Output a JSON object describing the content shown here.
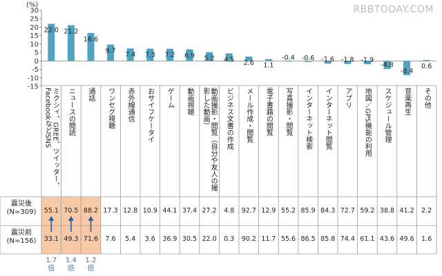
{
  "watermark": "RBBTODAY.COM",
  "chart_data": {
    "type": "bar",
    "ylabel": "(%)",
    "ylim": [
      -15,
      30
    ],
    "yticks": [
      30,
      25,
      20,
      15,
      10,
      5,
      0,
      -5,
      -10,
      -15
    ],
    "bar_color": "#4fa3c0",
    "categories": [
      "ミクシィ、GREE、ツイッター、FacebookなどSNS",
      "ニュースの閲読",
      "通話",
      "ワンセグ視聴",
      "赤外線通信",
      "おサイフケータイ",
      "ゲーム",
      "動画視聴",
      "動画撮影・閲覧（自分や友人の撮影した動画）",
      "ビジネス文書の作成",
      "メール作成・閲覧",
      "電子書籍の閲覧",
      "写真撮影・閲覧",
      "インターネット検索",
      "インターネット閲覧",
      "アプリ",
      "地図／GPS機能の利用",
      "スケジュール管理",
      "音楽再生",
      "その他"
    ],
    "values": [
      22.0,
      21.2,
      16.6,
      9.7,
      7.4,
      7.3,
      7.2,
      6.9,
      5.2,
      4.5,
      2.6,
      1.1,
      -0.4,
      -0.6,
      -1.6,
      -1.8,
      -1.9,
      -4.8,
      -8.4,
      0.6
    ],
    "value_labels": [
      "22.0",
      "21.2",
      "16.6",
      "9.7",
      "7.4",
      "7.3",
      "7.2",
      "6.9",
      "5.2",
      "4.5",
      "2.6",
      "1.1",
      "-0.4",
      "-0.6",
      "-1.6",
      "-1.8",
      "-1.9",
      "-4.8",
      "-8.4",
      "0.6"
    ]
  },
  "table": {
    "after_label": "震災後",
    "after_n": "(N=309)",
    "before_label": "震災前",
    "before_n": "(N=156)",
    "after_values": [
      "55.1",
      "70.5",
      "88.2",
      "17.3",
      "12.8",
      "10.9",
      "44.1",
      "37.4",
      "27.2",
      "4.8",
      "92.7",
      "12.9",
      "55.2",
      "85.9",
      "84.3",
      "72.7",
      "59.2",
      "38.8",
      "41.2",
      "2.2"
    ],
    "before_values": [
      "33.1",
      "49.3",
      "71.6",
      "7.6",
      "5.4",
      "3.6",
      "36.9",
      "30.5",
      "22.0",
      "0.3",
      "90.2",
      "11.7",
      "55.6",
      "86.5",
      "85.8",
      "74.4",
      "61.1",
      "43.6",
      "49.6",
      "1.6"
    ],
    "highlight_color": "#f7c9a6",
    "ratios": [
      "1.7",
      "1.4",
      "1.2"
    ],
    "ratio_unit": "倍"
  }
}
